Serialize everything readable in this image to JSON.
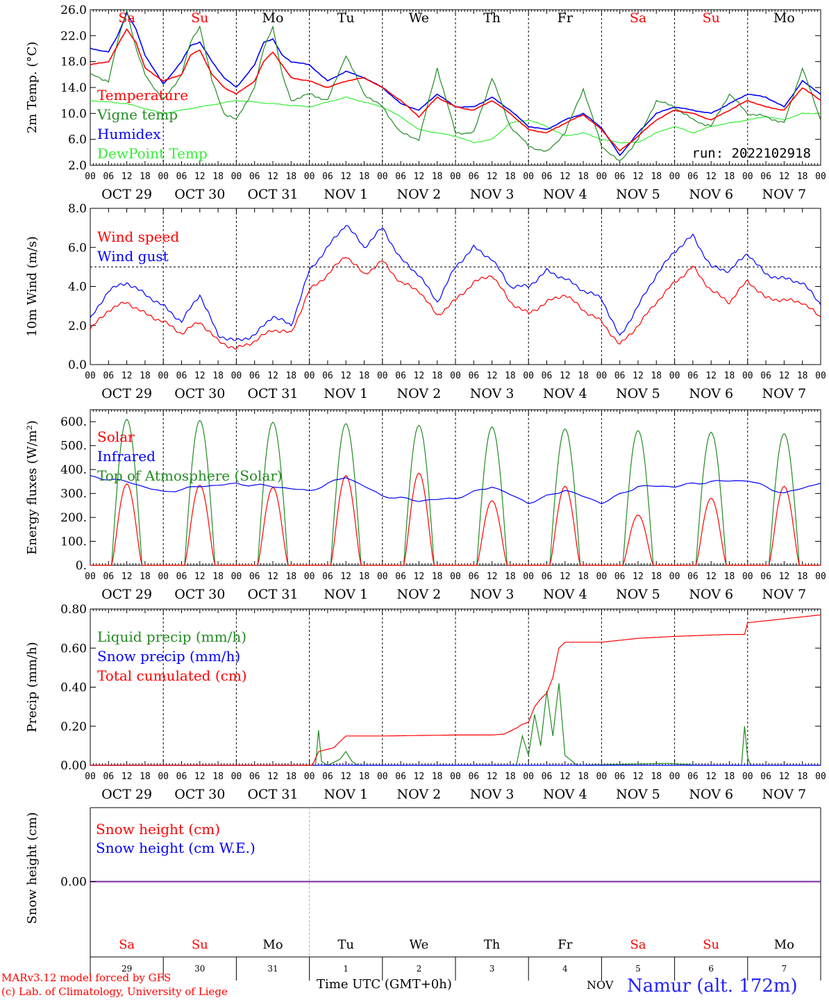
{
  "chart_data": [
    {
      "type": "line",
      "ylabel": "2m Temp. (°C)",
      "ylim": [
        2,
        26
      ],
      "yticks": [
        "2.0",
        "6.0",
        "10.0",
        "14.0",
        "18.0",
        "22.0",
        "26.0"
      ],
      "grid": "dashed vertical at 00 UTC",
      "legend_position": "top-left",
      "annotation": "run: 2022102918",
      "series": [
        {
          "name": "Temperature",
          "color": "#ff0000",
          "x_hours": [
            0,
            6,
            9,
            12,
            15,
            18,
            24,
            30,
            33,
            36,
            40,
            44,
            48,
            54,
            57,
            60,
            63,
            66,
            72,
            78,
            84,
            90,
            96,
            102,
            108,
            114,
            120,
            126,
            132,
            138,
            144,
            150,
            156,
            162,
            168,
            174,
            180,
            186,
            192,
            198,
            204,
            210,
            216,
            222,
            228,
            234,
            240
          ],
          "values": [
            17.5,
            18.0,
            20.5,
            23.0,
            21.0,
            17.0,
            15.0,
            16.0,
            19.0,
            19.8,
            16.0,
            14.0,
            13.0,
            15.0,
            18.0,
            19.5,
            17.5,
            15.5,
            15.0,
            14.0,
            15.0,
            15.5,
            14.0,
            12.0,
            9.5,
            12.5,
            11.0,
            10.5,
            12.0,
            10.0,
            7.5,
            7.0,
            8.5,
            9.8,
            7.5,
            4.2,
            6.5,
            9.0,
            10.5,
            10.0,
            9.0,
            10.5,
            12.0,
            11.0,
            10.5,
            14.0,
            12.0
          ]
        },
        {
          "name": "Vigne temp",
          "color": "#228b22",
          "x_hours": [
            0,
            6,
            9,
            12,
            15,
            18,
            24,
            30,
            33,
            36,
            40,
            44,
            48,
            54,
            57,
            60,
            63,
            66,
            72,
            78,
            84,
            90,
            96,
            102,
            108,
            114,
            120,
            126,
            132,
            138,
            144,
            150,
            156,
            162,
            168,
            174,
            180,
            186,
            192,
            198,
            204,
            210,
            216,
            222,
            228,
            234,
            240
          ],
          "values": [
            16.0,
            15.0,
            21.0,
            26.0,
            20.0,
            16.0,
            12.0,
            16.0,
            21.0,
            23.5,
            15.0,
            10.0,
            9.0,
            14.0,
            20.0,
            23.5,
            16.0,
            12.0,
            13.0,
            12.0,
            19.0,
            13.0,
            11.0,
            7.0,
            6.0,
            17.0,
            7.0,
            7.0,
            15.5,
            8.0,
            5.0,
            4.0,
            7.0,
            13.8,
            5.0,
            2.5,
            6.0,
            12.0,
            11.0,
            9.0,
            8.0,
            13.0,
            10.0,
            9.5,
            8.5,
            17.0,
            9.0
          ]
        },
        {
          "name": "Humidex",
          "color": "#0000ff",
          "x_hours": [
            0,
            6,
            9,
            12,
            15,
            18,
            24,
            30,
            33,
            36,
            40,
            44,
            48,
            54,
            57,
            60,
            63,
            66,
            72,
            78,
            84,
            90,
            96,
            102,
            108,
            114,
            120,
            126,
            132,
            138,
            144,
            150,
            156,
            162,
            168,
            174,
            180,
            186,
            192,
            198,
            204,
            210,
            216,
            222,
            228,
            234,
            240
          ],
          "values": [
            20.0,
            19.5,
            22.0,
            25.5,
            23.0,
            19.0,
            14.5,
            18.0,
            20.5,
            21.0,
            18.0,
            15.5,
            14.0,
            17.5,
            21.0,
            21.5,
            19.0,
            18.0,
            17.5,
            15.0,
            16.5,
            15.5,
            14.0,
            11.5,
            10.5,
            13.0,
            11.0,
            11.0,
            12.5,
            10.5,
            8.0,
            7.5,
            9.0,
            10.0,
            7.8,
            3.5,
            7.0,
            10.0,
            11.0,
            10.5,
            10.0,
            11.5,
            13.0,
            12.5,
            11.0,
            15.0,
            13.0
          ]
        },
        {
          "name": "DewPoint Temp",
          "color": "#33ee33",
          "x_hours": [
            0,
            12,
            24,
            36,
            48,
            60,
            72,
            84,
            96,
            102,
            108,
            114,
            120,
            126,
            132,
            138,
            144,
            150,
            156,
            162,
            168,
            174,
            180,
            186,
            192,
            198,
            204,
            210,
            216,
            222,
            228,
            234,
            240
          ],
          "values": [
            12.0,
            11.5,
            10.0,
            11.0,
            12.0,
            11.5,
            11.0,
            12.5,
            11.0,
            9.5,
            7.5,
            7.0,
            6.5,
            5.5,
            6.0,
            8.5,
            9.0,
            8.0,
            6.5,
            7.0,
            6.0,
            5.5,
            5.5,
            7.0,
            8.0,
            7.0,
            8.0,
            8.5,
            9.0,
            9.5,
            9.0,
            10.0,
            10.0
          ]
        }
      ]
    },
    {
      "type": "line",
      "ylabel": "10m Wind (m/s)",
      "ylim": [
        0,
        8
      ],
      "yticks": [
        "0.0",
        "2.0",
        "4.0",
        "6.0",
        "8.0"
      ],
      "reference_line": 5.0,
      "legend_position": "top-left",
      "series": [
        {
          "name": "Wind speed",
          "color": "#ff0000",
          "x_hours": [
            0,
            6,
            12,
            18,
            24,
            30,
            36,
            42,
            48,
            54,
            60,
            66,
            72,
            78,
            84,
            90,
            96,
            102,
            108,
            114,
            120,
            126,
            132,
            138,
            144,
            150,
            156,
            162,
            168,
            174,
            180,
            186,
            192,
            198,
            204,
            210,
            216,
            222,
            228,
            234,
            240
          ],
          "values": [
            1.8,
            2.8,
            3.2,
            2.6,
            2.2,
            1.6,
            2.2,
            1.2,
            0.8,
            1.2,
            1.8,
            1.6,
            3.8,
            4.6,
            5.6,
            4.6,
            5.3,
            4.2,
            3.8,
            2.5,
            3.3,
            4.2,
            4.6,
            3.2,
            2.6,
            3.2,
            3.6,
            2.8,
            2.2,
            1.0,
            2.0,
            3.2,
            4.2,
            5.0,
            3.8,
            3.2,
            4.3,
            3.4,
            3.3,
            3.2,
            2.4
          ]
        },
        {
          "name": "Wind gust",
          "color": "#0000ff",
          "x_hours": [
            0,
            6,
            12,
            18,
            24,
            30,
            36,
            42,
            48,
            54,
            60,
            66,
            72,
            78,
            84,
            90,
            96,
            102,
            108,
            114,
            120,
            126,
            132,
            138,
            144,
            150,
            156,
            162,
            168,
            174,
            180,
            186,
            192,
            198,
            204,
            210,
            216,
            222,
            228,
            234,
            240
          ],
          "values": [
            2.3,
            3.8,
            4.2,
            3.6,
            3.0,
            2.2,
            3.6,
            1.5,
            1.2,
            1.5,
            2.5,
            2.0,
            4.8,
            6.0,
            7.2,
            6.0,
            7.0,
            5.4,
            4.6,
            3.2,
            5.0,
            6.0,
            5.4,
            4.0,
            4.0,
            4.8,
            4.4,
            3.8,
            3.4,
            1.4,
            3.0,
            4.6,
            5.8,
            6.6,
            5.0,
            4.8,
            5.7,
            4.6,
            4.4,
            4.2,
            3.1
          ]
        }
      ]
    },
    {
      "type": "line",
      "ylabel": "Energy fluxes (W/m²)",
      "ylim": [
        0,
        650
      ],
      "yticks": [
        "0.",
        "100.",
        "200.",
        "300.",
        "400.",
        "500.",
        "600."
      ],
      "legend_position": "top-left",
      "series": [
        {
          "name": "Solar",
          "color": "#ff0000",
          "daily_peak_hour": 12,
          "daily_peaks": [
            340,
            335,
            325,
            375,
            385,
            270,
            330,
            210,
            280,
            330
          ]
        },
        {
          "name": "Infrared",
          "color": "#0000ff",
          "x_hours": [
            0,
            12,
            24,
            36,
            48,
            60,
            72,
            84,
            96,
            108,
            120,
            132,
            144,
            156,
            168,
            180,
            192,
            204,
            216,
            228,
            240
          ],
          "values": [
            370,
            350,
            305,
            330,
            340,
            330,
            310,
            370,
            290,
            270,
            280,
            330,
            260,
            315,
            260,
            330,
            330,
            350,
            355,
            300,
            345
          ]
        },
        {
          "name": "Top of Atmosphere (Solar)",
          "color": "#228b22",
          "daily_peak_hour": 12,
          "daily_peaks": [
            610,
            605,
            598,
            592,
            585,
            578,
            570,
            563,
            556,
            550
          ]
        }
      ]
    },
    {
      "type": "line",
      "ylabel": "Precip (mm/h)",
      "ylim": [
        0,
        0.8
      ],
      "yticks": [
        "0.00",
        "0.20",
        "0.40",
        "0.60",
        "0.80"
      ],
      "legend_position": "top-left",
      "series": [
        {
          "name": "Liquid precip (mm/h)",
          "color": "#228b22",
          "x_hours": [
            0,
            74,
            75,
            76,
            78,
            82,
            84,
            86,
            88,
            90,
            96,
            140,
            142,
            144,
            146,
            148,
            150,
            152,
            154,
            156,
            160,
            190,
            200,
            214,
            215,
            216,
            217,
            240
          ],
          "values": [
            0,
            0,
            0.18,
            0.02,
            0,
            0.03,
            0.07,
            0.02,
            0,
            0,
            0,
            0,
            0.15,
            0.05,
            0.26,
            0.1,
            0.38,
            0.15,
            0.42,
            0.05,
            0,
            0.01,
            0,
            0,
            0.2,
            0.04,
            0,
            0
          ]
        },
        {
          "name": "Snow precip (mm/h)",
          "color": "#0000ff",
          "x_hours": [
            0,
            240
          ],
          "values": [
            0,
            0
          ]
        },
        {
          "name": "Total cumulated (cm)",
          "color": "#ff0000",
          "x_hours": [
            0,
            73,
            75,
            80,
            82,
            84,
            96,
            120,
            132,
            136,
            140,
            142,
            144,
            146,
            148,
            150,
            152,
            154,
            156,
            158,
            168,
            180,
            192,
            210,
            215,
            216,
            228,
            234,
            240
          ],
          "values": [
            0,
            0,
            0.07,
            0.09,
            0.12,
            0.15,
            0.15,
            0.155,
            0.155,
            0.16,
            0.19,
            0.21,
            0.22,
            0.3,
            0.34,
            0.37,
            0.45,
            0.6,
            0.63,
            0.63,
            0.63,
            0.65,
            0.66,
            0.67,
            0.67,
            0.73,
            0.75,
            0.76,
            0.77
          ]
        }
      ]
    },
    {
      "type": "line",
      "ylabel": "Snow height (cm)",
      "ylim": [
        -1,
        1
      ],
      "yticks": [
        "0.00"
      ],
      "legend_position": "top-left",
      "series": [
        {
          "name": "Snow height (cm)",
          "color": "#ff0000",
          "x_hours": [
            0,
            240
          ],
          "values": [
            0,
            0
          ]
        },
        {
          "name": "Snow height (cm W.E.)",
          "color": "#0000ff",
          "x_hours": [
            0,
            240
          ],
          "values": [
            0,
            0
          ]
        }
      ]
    }
  ],
  "hour_labels": [
    "00",
    "06",
    "12",
    "18"
  ],
  "day_dates": [
    "OCT 29",
    "OCT 30",
    "OCT 31",
    "NOV  1",
    "NOV  2",
    "NOV  3",
    "NOV  4",
    "NOV  5",
    "NOV  6",
    "NOV  7"
  ],
  "weekdays": [
    "Sa",
    "Su",
    "Mo",
    "Tu",
    "We",
    "Th",
    "Fr",
    "Sa",
    "Su",
    "Mo"
  ],
  "weekday_colors": [
    "#ff0000",
    "#ff0000",
    "#000000",
    "#000000",
    "#000000",
    "#000000",
    "#000000",
    "#ff0000",
    "#ff0000",
    "#000000"
  ],
  "day_numbers": [
    "29",
    "30",
    "31",
    "1",
    "2",
    "3",
    "4",
    "5",
    "6",
    "7"
  ],
  "footer": {
    "credit_line1": "MARv3.12 model forced by GFS",
    "credit_line2": "(c) Lab. of Climatology, University of Liege",
    "xlabel": "Time UTC (GMT+0h)",
    "month": "NOV",
    "station": "Namur (alt. 172m)"
  }
}
